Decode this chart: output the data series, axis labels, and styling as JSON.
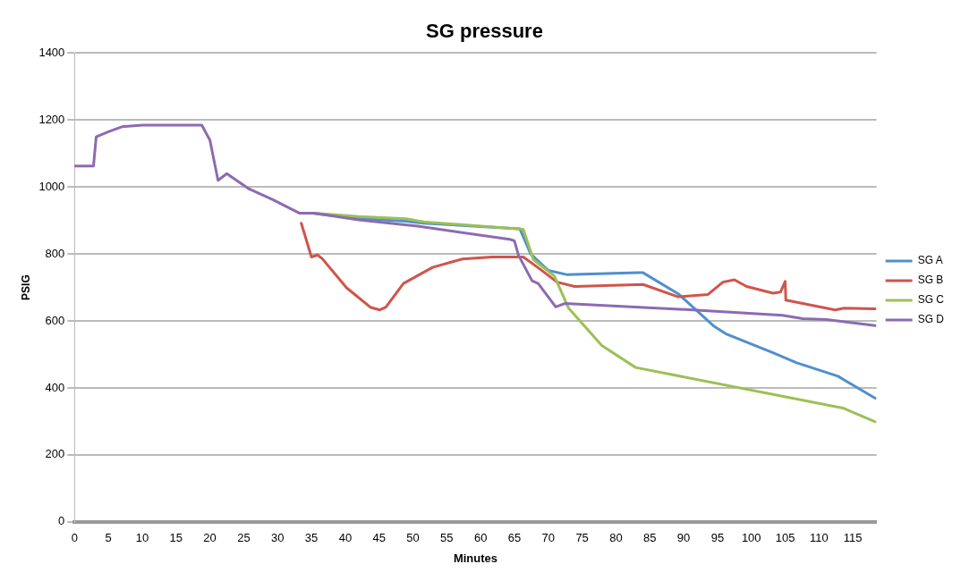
{
  "chart_data": {
    "type": "line",
    "title": "SG pressure",
    "xlabel": "Minutes",
    "ylabel": "PSIG",
    "xlim": [
      0,
      118.5
    ],
    "xticks": [
      0,
      5,
      10,
      15,
      20,
      25,
      30,
      35,
      40,
      45,
      50,
      55,
      60,
      65,
      70,
      75,
      80,
      85,
      90,
      95,
      100,
      105,
      110,
      115
    ],
    "ylim": [
      0,
      1400
    ],
    "yticks": [
      0,
      200,
      400,
      600,
      800,
      1000,
      1200,
      1400
    ],
    "grid": "y",
    "legend": "right",
    "marker": "none",
    "line_style": "solid",
    "series": [
      {
        "name": "SG A",
        "color": "#4f8fcd",
        "x": [
          35.4,
          42,
          49,
          51.6,
          65.8,
          67.4,
          70,
          72.8,
          83.3,
          84,
          89.2,
          94.5,
          96.2,
          103.2,
          106.7,
          112.8,
          113.7,
          118.3
        ],
        "values": [
          921,
          906,
          898,
          892,
          875,
          800,
          751,
          738,
          744,
          744,
          681,
          584,
          562,
          505,
          475,
          435,
          424,
          369
        ]
      },
      {
        "name": "SG B",
        "color": "#d0544c",
        "x": [
          33.5,
          35,
          35.9,
          36.6,
          40.2,
          43.7,
          45.1,
          46,
          48.6,
          52.9,
          57.3,
          61.7,
          66.3,
          68.7,
          71.3,
          73.9,
          84,
          89.2,
          93.6,
          95.8,
          97.5,
          99.3,
          103.2,
          104.3,
          105,
          105.1,
          112.4,
          113.7,
          118.3
        ],
        "values": [
          892,
          791,
          797,
          786,
          699,
          641,
          633,
          641,
          712,
          760,
          785,
          791,
          791,
          756,
          716,
          703,
          709,
          672,
          679,
          716,
          723,
          703,
          683,
          686,
          718,
          662,
          633,
          638,
          636
        ]
      },
      {
        "name": "SG C",
        "color": "#9bc056",
        "x": [
          35.4,
          42,
          49,
          51.6,
          66.3,
          67.8,
          70.9,
          73,
          77.9,
          82.9,
          113.5,
          118.3
        ],
        "values": [
          922,
          912,
          905,
          896,
          874,
          783,
          734,
          638,
          527,
          461,
          340,
          299
        ]
      },
      {
        "name": "SG D",
        "color": "#8c6bb1",
        "x": [
          0,
          2.8,
          3.2,
          5,
          7,
          10,
          18.8,
          20,
          21.2,
          22.5,
          25.8,
          29.3,
          33.2,
          35.4,
          42,
          50.7,
          64.3,
          65,
          65.6,
          67.6,
          68.5,
          71.1,
          72.4,
          91.4,
          104.6,
          107.6,
          111.1,
          118.3
        ],
        "values": [
          1063,
          1063,
          1150,
          1165,
          1180,
          1185,
          1185,
          1140,
          1020,
          1040,
          994,
          962,
          922,
          922,
          902,
          883,
          844,
          839,
          796,
          720,
          712,
          642,
          652,
          633,
          617,
          607,
          604,
          586
        ]
      }
    ]
  }
}
